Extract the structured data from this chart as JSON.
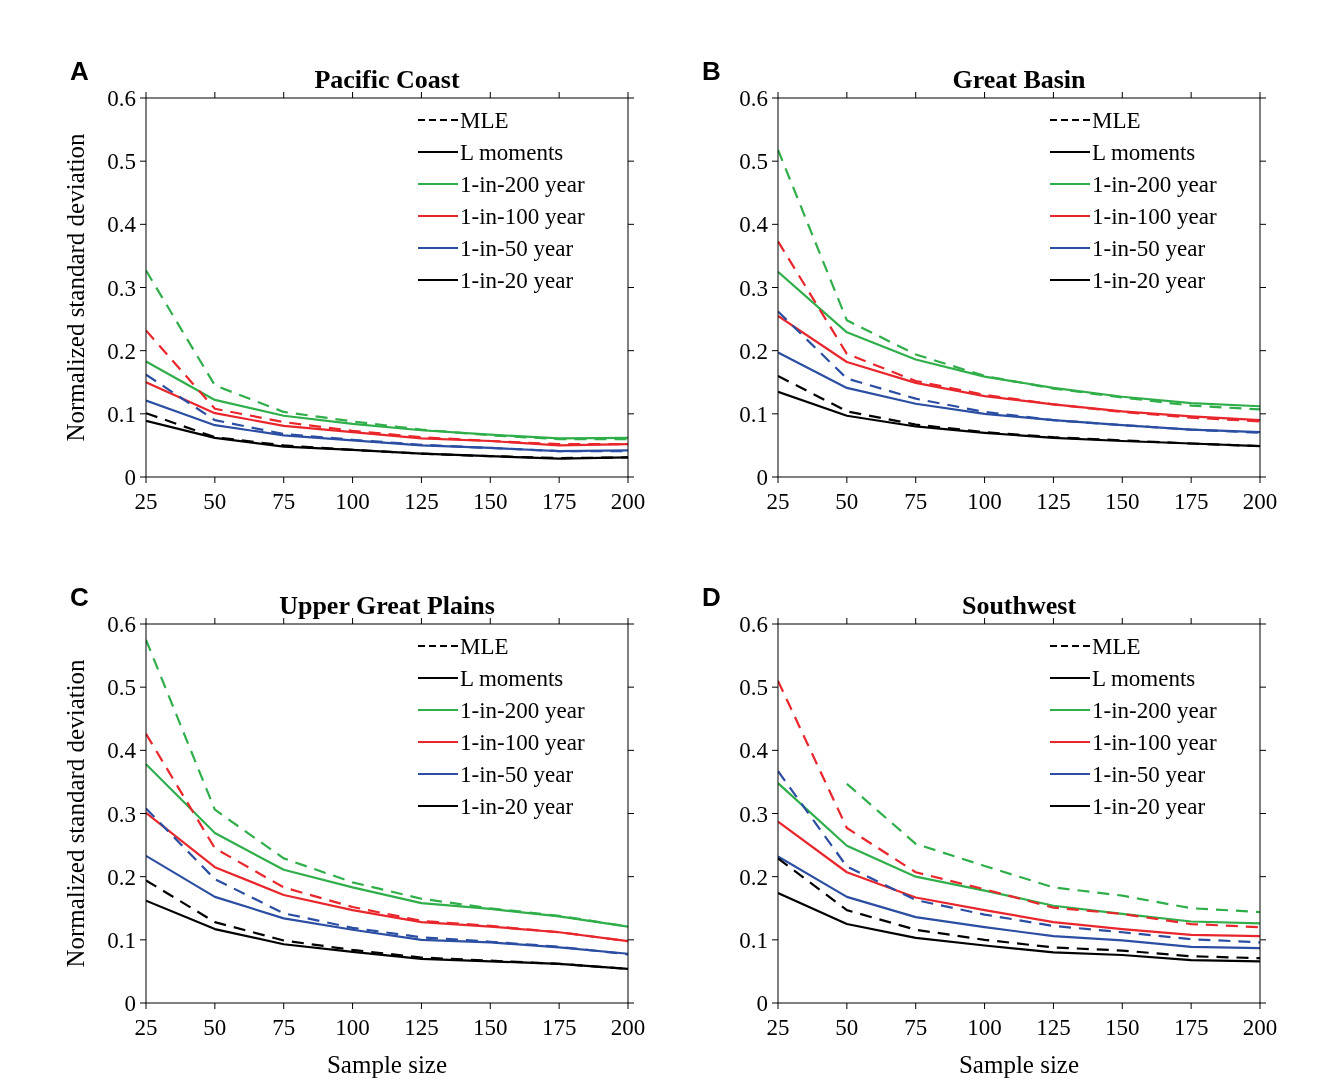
{
  "chart_data": [
    {
      "type": "line",
      "title": "Pacific Coast",
      "ylabel": "Normalized standard deviation",
      "annotations": [
        "A",
        "MLE",
        "L moments"
      ],
      "legend": "top right",
      "x": [
        25,
        50,
        75,
        100,
        125,
        150,
        175,
        200
      ],
      "xlim": [
        25,
        200
      ],
      "xticks": [
        25,
        50,
        75,
        100,
        125,
        150,
        175,
        200
      ],
      "ylim": [
        0,
        0.6
      ],
      "yticks": [
        0,
        0.1,
        0.2,
        0.3,
        0.4,
        0.5,
        0.6
      ],
      "series": [
        {
          "name": "1-in-200 year",
          "color": "#2fae4a",
          "line_style": "solid",
          "values": [
            0.183,
            0.122,
            0.097,
            0.084,
            0.074,
            0.067,
            0.061,
            0.062
          ]
        },
        {
          "name": "1-in-100 year",
          "color": "#e8262b",
          "line_style": "solid",
          "values": [
            0.15,
            0.101,
            0.081,
            0.071,
            0.061,
            0.057,
            0.05,
            0.052
          ]
        },
        {
          "name": "1-in-50 year",
          "color": "#2b4ea2",
          "line_style": "solid",
          "values": [
            0.121,
            0.082,
            0.066,
            0.058,
            0.05,
            0.046,
            0.041,
            0.042
          ]
        },
        {
          "name": "1-in-20 year",
          "color": "#000000",
          "line_style": "solid",
          "values": [
            0.089,
            0.062,
            0.048,
            0.043,
            0.037,
            0.033,
            0.029,
            0.031
          ]
        },
        {
          "color": "#2fae4a",
          "line_style": "dashed",
          "values": [
            0.327,
            0.145,
            0.103,
            0.088,
            0.075,
            0.066,
            0.06,
            0.06
          ]
        },
        {
          "color": "#e8262b",
          "line_style": "dashed",
          "values": [
            0.232,
            0.108,
            0.087,
            0.073,
            0.063,
            0.057,
            0.052,
            0.052
          ]
        },
        {
          "color": "#2b4ea2",
          "line_style": "dashed",
          "values": [
            0.162,
            0.09,
            0.068,
            0.059,
            0.051,
            0.046,
            0.041,
            0.041
          ]
        },
        {
          "color": "#000000",
          "line_style": "dashed",
          "values": [
            0.101,
            0.063,
            0.05,
            0.043,
            0.037,
            0.033,
            0.03,
            0.031
          ]
        }
      ]
    },
    {
      "type": "line",
      "title": "Great Basin",
      "annotations": [
        "B",
        "MLE",
        "L moments"
      ],
      "legend": "top right",
      "x": [
        25,
        50,
        75,
        100,
        125,
        150,
        175,
        200
      ],
      "xlim": [
        25,
        200
      ],
      "xticks": [
        25,
        50,
        75,
        100,
        125,
        150,
        175,
        200
      ],
      "ylim": [
        0,
        0.6
      ],
      "yticks": [
        0,
        0.1,
        0.2,
        0.3,
        0.4,
        0.5,
        0.6
      ],
      "series": [
        {
          "name": "1-in-200 year",
          "color": "#2fae4a",
          "line_style": "solid",
          "values": [
            0.325,
            0.229,
            0.186,
            0.159,
            0.141,
            0.127,
            0.117,
            0.112
          ]
        },
        {
          "name": "1-in-100 year",
          "color": "#e8262b",
          "line_style": "solid",
          "values": [
            0.255,
            0.182,
            0.149,
            0.128,
            0.115,
            0.104,
            0.096,
            0.09
          ]
        },
        {
          "name": "1-in-50 year",
          "color": "#2b4ea2",
          "line_style": "solid",
          "values": [
            0.197,
            0.141,
            0.116,
            0.1,
            0.09,
            0.082,
            0.075,
            0.071
          ]
        },
        {
          "name": "1-in-20 year",
          "color": "#000000",
          "line_style": "solid",
          "values": [
            0.135,
            0.097,
            0.08,
            0.07,
            0.062,
            0.057,
            0.053,
            0.049
          ]
        },
        {
          "color": "#2fae4a",
          "line_style": "dashed",
          "values": [
            0.518,
            0.248,
            0.194,
            0.16,
            0.14,
            0.126,
            0.113,
            0.107
          ]
        },
        {
          "color": "#e8262b",
          "line_style": "dashed",
          "values": [
            0.373,
            0.195,
            0.152,
            0.13,
            0.115,
            0.103,
            0.094,
            0.088
          ]
        },
        {
          "color": "#2b4ea2",
          "line_style": "dashed",
          "values": [
            0.262,
            0.156,
            0.124,
            0.103,
            0.09,
            0.082,
            0.075,
            0.07
          ]
        },
        {
          "color": "#000000",
          "line_style": "dashed",
          "values": [
            0.16,
            0.104,
            0.083,
            0.071,
            0.063,
            0.058,
            0.053,
            0.049
          ]
        }
      ]
    },
    {
      "type": "line",
      "title": "Upper Great Plains",
      "ylabel": "Normalized standard deviation",
      "xlabel": "Sample size",
      "annotations": [
        "C",
        "MLE",
        "L moments"
      ],
      "legend": "top right",
      "x": [
        25,
        50,
        75,
        100,
        125,
        150,
        175,
        200
      ],
      "xlim": [
        25,
        200
      ],
      "xticks": [
        25,
        50,
        75,
        100,
        125,
        150,
        175,
        200
      ],
      "ylim": [
        0,
        0.6
      ],
      "yticks": [
        0,
        0.1,
        0.2,
        0.3,
        0.4,
        0.5,
        0.6
      ],
      "series": [
        {
          "name": "1-in-200 year",
          "color": "#2fae4a",
          "line_style": "solid",
          "values": [
            0.378,
            0.269,
            0.211,
            0.183,
            0.158,
            0.149,
            0.137,
            0.121
          ]
        },
        {
          "name": "1-in-100 year",
          "color": "#e8262b",
          "line_style": "solid",
          "values": [
            0.301,
            0.215,
            0.171,
            0.147,
            0.128,
            0.121,
            0.112,
            0.098
          ]
        },
        {
          "name": "1-in-50 year",
          "color": "#2b4ea2",
          "line_style": "solid",
          "values": [
            0.233,
            0.168,
            0.134,
            0.116,
            0.1,
            0.096,
            0.088,
            0.078
          ]
        },
        {
          "name": "1-in-20 year",
          "color": "#000000",
          "line_style": "solid",
          "values": [
            0.162,
            0.117,
            0.093,
            0.081,
            0.07,
            0.066,
            0.062,
            0.054
          ]
        },
        {
          "color": "#2fae4a",
          "line_style": "dashed",
          "values": [
            0.575,
            0.306,
            0.229,
            0.191,
            0.165,
            0.15,
            0.138,
            0.121
          ]
        },
        {
          "color": "#e8262b",
          "line_style": "dashed",
          "values": [
            0.426,
            0.245,
            0.183,
            0.152,
            0.13,
            0.122,
            0.112,
            0.098
          ]
        },
        {
          "color": "#2b4ea2",
          "line_style": "dashed",
          "values": [
            0.308,
            0.196,
            0.142,
            0.119,
            0.104,
            0.097,
            0.089,
            0.077
          ]
        },
        {
          "color": "#000000",
          "line_style": "dashed",
          "values": [
            0.194,
            0.128,
            0.099,
            0.084,
            0.072,
            0.067,
            0.062,
            0.054
          ]
        }
      ]
    },
    {
      "type": "line",
      "title": "Southwest",
      "xlabel": "Sample size",
      "annotations": [
        "D",
        "MLE",
        "L moments"
      ],
      "legend": "top right",
      "x": [
        25,
        50,
        75,
        100,
        125,
        150,
        175,
        200
      ],
      "xlim": [
        25,
        200
      ],
      "xticks": [
        25,
        50,
        75,
        100,
        125,
        150,
        175,
        200
      ],
      "ylim": [
        0,
        0.6
      ],
      "yticks": [
        0,
        0.1,
        0.2,
        0.3,
        0.4,
        0.5,
        0.6
      ],
      "series": [
        {
          "name": "1-in-200 year",
          "color": "#2fae4a",
          "line_style": "solid",
          "values": [
            0.348,
            0.249,
            0.2,
            0.178,
            0.154,
            0.141,
            0.129,
            0.126
          ]
        },
        {
          "name": "1-in-100 year",
          "color": "#e8262b",
          "line_style": "solid",
          "values": [
            0.287,
            0.207,
            0.167,
            0.147,
            0.128,
            0.117,
            0.108,
            0.106
          ]
        },
        {
          "name": "1-in-50 year",
          "color": "#2b4ea2",
          "line_style": "solid",
          "values": [
            0.232,
            0.168,
            0.136,
            0.12,
            0.106,
            0.099,
            0.089,
            0.087
          ]
        },
        {
          "name": "1-in-20 year",
          "color": "#000000",
          "line_style": "solid",
          "values": [
            0.174,
            0.125,
            0.103,
            0.091,
            0.08,
            0.076,
            0.068,
            0.066
          ]
        },
        {
          "color": "#2fae4a",
          "line_style": "dashed",
          "values": [
            null,
            0.347,
            0.252,
            0.217,
            0.183,
            0.17,
            0.15,
            0.144
          ]
        },
        {
          "color": "#e8262b",
          "line_style": "dashed",
          "values": [
            0.51,
            0.277,
            0.207,
            0.18,
            0.151,
            0.141,
            0.125,
            0.12
          ]
        },
        {
          "color": "#2b4ea2",
          "line_style": "dashed",
          "values": [
            0.367,
            0.216,
            0.163,
            0.14,
            0.122,
            0.112,
            0.101,
            0.096
          ]
        },
        {
          "color": "#000000",
          "line_style": "dashed",
          "values": [
            0.229,
            0.147,
            0.116,
            0.1,
            0.088,
            0.083,
            0.074,
            0.071
          ]
        }
      ]
    }
  ]
}
